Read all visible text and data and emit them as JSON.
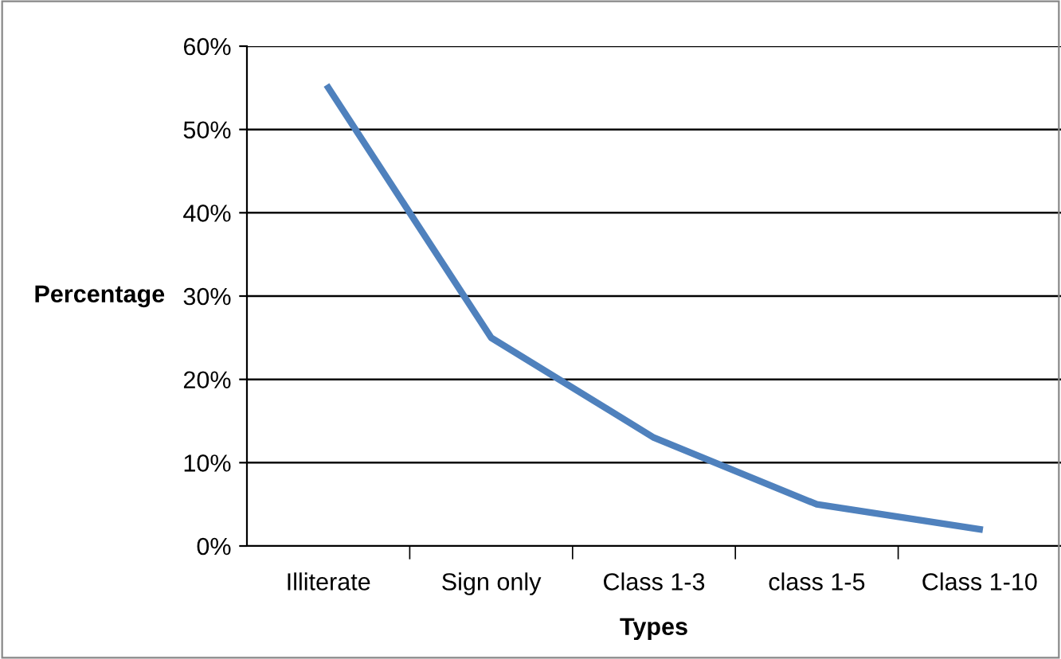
{
  "chart_data": {
    "type": "line",
    "xlabel": "Types",
    "ylabel": "Percentage",
    "categories": [
      "Illiterate",
      "Sign only",
      "Class 1-3",
      "class 1-5",
      "Class 1-10"
    ],
    "series": [
      {
        "color": "#4f81bd",
        "values": [
          55,
          25,
          13,
          5,
          2
        ]
      }
    ],
    "ylim": [
      0,
      60
    ],
    "yticks": [
      {
        "value": 0,
        "label": "0%"
      },
      {
        "value": 10,
        "label": "10%"
      },
      {
        "value": 20,
        "label": "20%"
      },
      {
        "value": 30,
        "label": "30%"
      },
      {
        "value": 40,
        "label": "40%"
      },
      {
        "value": 50,
        "label": "50%"
      },
      {
        "value": 60,
        "label": "60%"
      }
    ],
    "grid": "y",
    "marker": "none",
    "line_style": "solid",
    "legend": false
  }
}
